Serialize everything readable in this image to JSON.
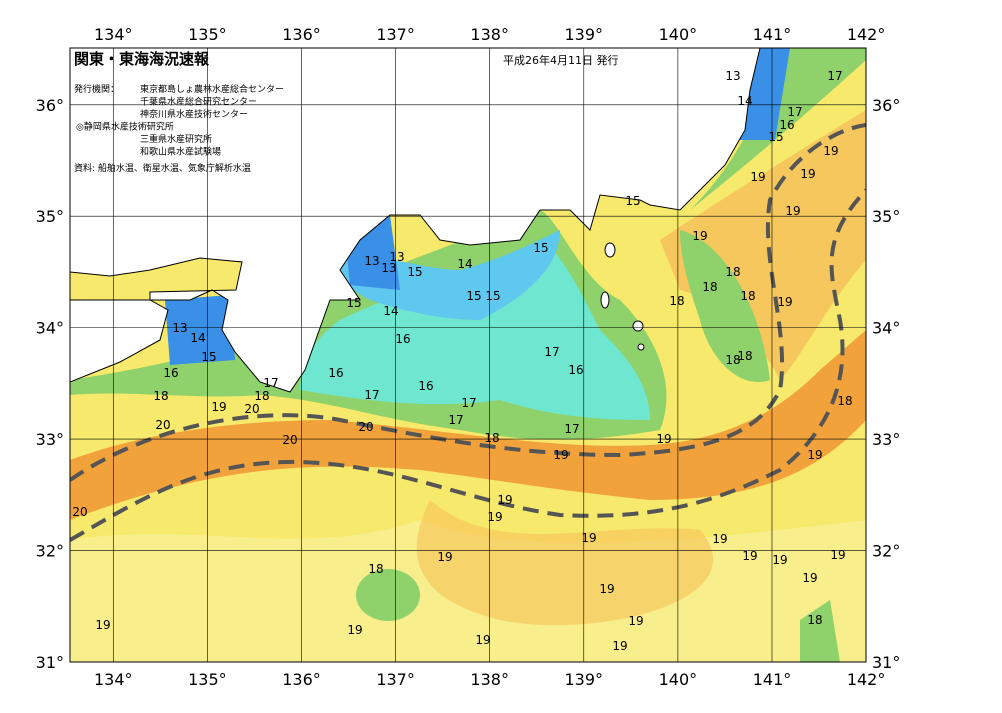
{
  "header": {
    "title": "関東・東海海況速報",
    "date": "平成26年4月11日 発行",
    "issuer_label": "発行機関：",
    "issuers": [
      "東京都島しょ農林水産総合センター",
      "千葉県水産総合研究センター",
      "神奈川県水産技術センター",
      "◎静岡県水産技術研究所",
      "三重県水産研究所",
      "和歌山県水産試験場"
    ],
    "source": "資料: 船舶水温、衛星水温、気象庁解析水温"
  },
  "axes": {
    "lon_ticks": [
      {
        "value": 134,
        "label": "134°"
      },
      {
        "value": 135,
        "label": "135°"
      },
      {
        "value": 136,
        "label": "136°"
      },
      {
        "value": 137,
        "label": "137°"
      },
      {
        "value": 138,
        "label": "138°"
      },
      {
        "value": 139,
        "label": "139°"
      },
      {
        "value": 140,
        "label": "140°"
      },
      {
        "value": 141,
        "label": "141°"
      },
      {
        "value": 142,
        "label": "142°"
      }
    ],
    "lat_ticks": [
      {
        "value": 31,
        "label": "31°"
      },
      {
        "value": 32,
        "label": "32°"
      },
      {
        "value": 33,
        "label": "33°"
      },
      {
        "value": 34,
        "label": "34°"
      },
      {
        "value": 35,
        "label": "35°"
      },
      {
        "value": 36,
        "label": "36°"
      }
    ]
  },
  "contour_labels": [
    "13",
    "17",
    "14",
    "17",
    "16",
    "15",
    "19",
    "19",
    "19",
    "19",
    "15",
    "19",
    "15",
    "13",
    "13",
    "13",
    "15",
    "14",
    "15",
    "15",
    "18",
    "18",
    "18",
    "18",
    "19",
    "15",
    "14",
    "13",
    "14",
    "16",
    "15",
    "17",
    "16",
    "18",
    "18",
    "16",
    "16",
    "17",
    "16",
    "17",
    "18",
    "18",
    "19",
    "20",
    "17",
    "17",
    "18",
    "20",
    "20",
    "17",
    "20",
    "18",
    "19",
    "19",
    "19",
    "20",
    "19",
    "19",
    "19",
    "19",
    "19",
    "19",
    "19",
    "19",
    "18",
    "19",
    "19",
    "18",
    "19",
    "19",
    "19",
    "19",
    "19"
  ]
}
